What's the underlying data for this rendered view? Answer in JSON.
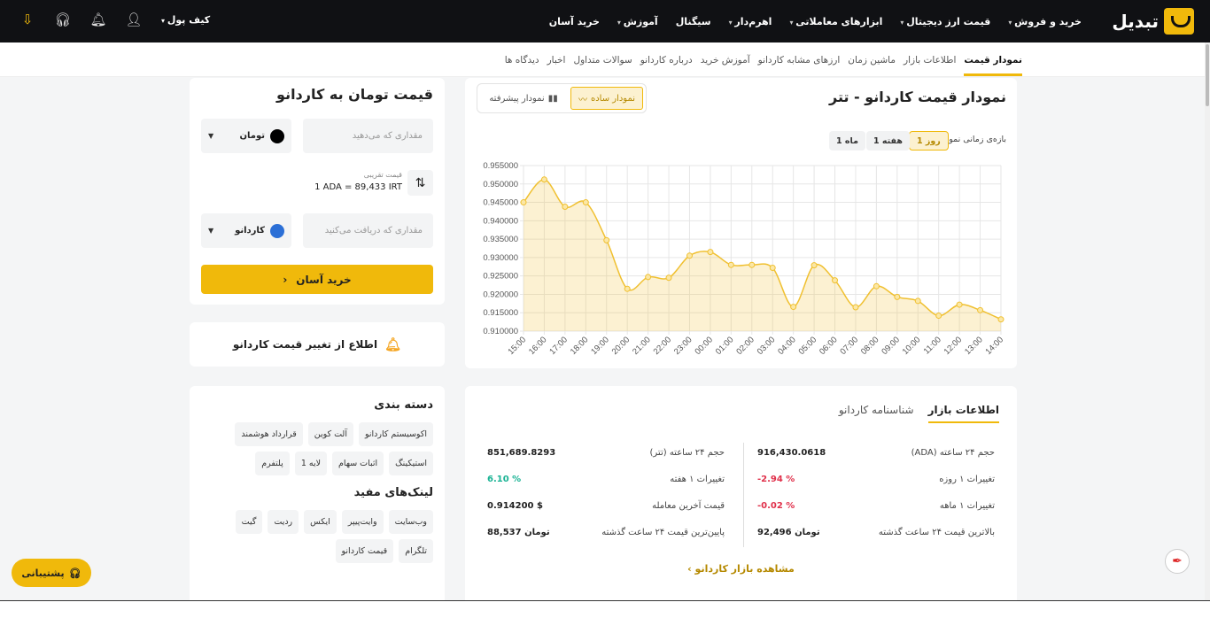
{
  "header": {
    "logo": "تبدیل",
    "nav": [
      {
        "label": "خرید و فروش",
        "caret": true
      },
      {
        "label": "قیمت ارز دیجیتال",
        "caret": true
      },
      {
        "label": "ابزارهای معاملاتی",
        "caret": true
      },
      {
        "label": "اهرم‌دار",
        "caret": true
      },
      {
        "label": "سیگنال",
        "caret": false
      },
      {
        "label": "آموزش",
        "caret": true
      },
      {
        "label": "خرید آسان",
        "caret": false
      }
    ],
    "wallet": "کیف پول"
  },
  "subnav": [
    "نمودار قیمت",
    "اطلاعات بازار",
    "ماشین زمان",
    "ارزهای مشابه کاردانو",
    "آموزش خرید",
    "درباره کاردانو",
    "سوالات متداول",
    "اخبار",
    "دیدگاه ها"
  ],
  "chart_card": {
    "title": "نمودار قیمت کاردانو - تتر",
    "simple": "نمودار ساده",
    "advanced": "نمودار پیشرفته",
    "range_label": "بازه‌ی زمانی نمودار",
    "ranges": [
      "1 روز",
      "1 هفته",
      "1 ماه"
    ],
    "active_range": "1 روز"
  },
  "chart_data": {
    "type": "area",
    "x": [
      "15:00",
      "16:00",
      "17:00",
      "18:00",
      "19:00",
      "20:00",
      "21:00",
      "22:00",
      "23:00",
      "00:00",
      "01:00",
      "02:00",
      "03:00",
      "04:00",
      "05:00",
      "06:00",
      "07:00",
      "08:00",
      "09:00",
      "10:00",
      "11:00",
      "12:00",
      "13:00",
      "14:00"
    ],
    "values": [
      0.945,
      0.9512,
      0.9438,
      0.945,
      0.9347,
      0.9215,
      0.9247,
      0.9245,
      0.9305,
      0.9315,
      0.928,
      0.928,
      0.9272,
      0.9166,
      0.9279,
      0.9238,
      0.9165,
      0.9222,
      0.9193,
      0.9182,
      0.9142,
      0.9172,
      0.9157,
      0.9132
    ],
    "ylim": [
      0.91,
      0.955
    ],
    "yticks": [
      "0.955000",
      "0.950000",
      "0.945000",
      "0.940000",
      "0.935000",
      "0.930000",
      "0.925000",
      "0.920000",
      "0.915000",
      "0.910000"
    ],
    "grid": true,
    "color": "#f0c030"
  },
  "converter": {
    "title": "قیمت تومان به کاردانو",
    "give_placeholder": "مقداری که می‌دهید",
    "give_currency": "تومان",
    "rate_label": "قیمت تقریبی",
    "rate": "1 ADA = 89,433 IRT",
    "get_placeholder": "مقداری که دریافت می‌کنید",
    "get_currency": "کاردانو",
    "buy": "خرید آسان"
  },
  "alert": "اطلاع از تغییر قیمت کاردانو",
  "market": {
    "tabs": [
      "اطلاعات بازار",
      "شناسنامه کاردانو"
    ],
    "right": [
      {
        "label": "حجم ۲۴ ساعته (ADA)",
        "value": "916,430.0618",
        "c": ""
      },
      {
        "label": "تغییرات ۱ روزه",
        "value": "-2.94 %",
        "c": "red"
      },
      {
        "label": "تغییرات ۱ ماهه",
        "value": "-0.02 %",
        "c": "red"
      },
      {
        "label": "بالاترین قیمت ۲۴ ساعت گذشته",
        "value": "92,496 تومان",
        "c": ""
      }
    ],
    "left": [
      {
        "label": "حجم ۲۴ ساعته (تتر)",
        "value": "851,689.8293",
        "c": ""
      },
      {
        "label": "تغییرات ۱ هفته",
        "value": "6.10 %",
        "c": "green"
      },
      {
        "label": "قیمت آخرین معامله",
        "value": "0.914200 $",
        "c": ""
      },
      {
        "label": "پایین‌ترین قیمت ۲۴ ساعت گذشته",
        "value": "88,537 تومان",
        "c": ""
      }
    ],
    "link": "مشاهده بازار کاردانو"
  },
  "categories": {
    "title": "دسته بندی",
    "tags": [
      "اکوسیستم کاردانو",
      "آلت کوین",
      "قرارداد هوشمند",
      "استیکینگ",
      "اثبات سهام",
      "لایه 1",
      "پلتفرم"
    ]
  },
  "links": {
    "title": "لینک‌های مفید",
    "tags": [
      "وب‌سایت",
      "وایت‌پیپر",
      "ایکس",
      "ردیت",
      "گیت",
      "تلگرام",
      "قیمت کاردانو"
    ]
  },
  "support": "پشتیبانی",
  "colors": {
    "accent": "#f0b90b",
    "header": "#101114"
  }
}
